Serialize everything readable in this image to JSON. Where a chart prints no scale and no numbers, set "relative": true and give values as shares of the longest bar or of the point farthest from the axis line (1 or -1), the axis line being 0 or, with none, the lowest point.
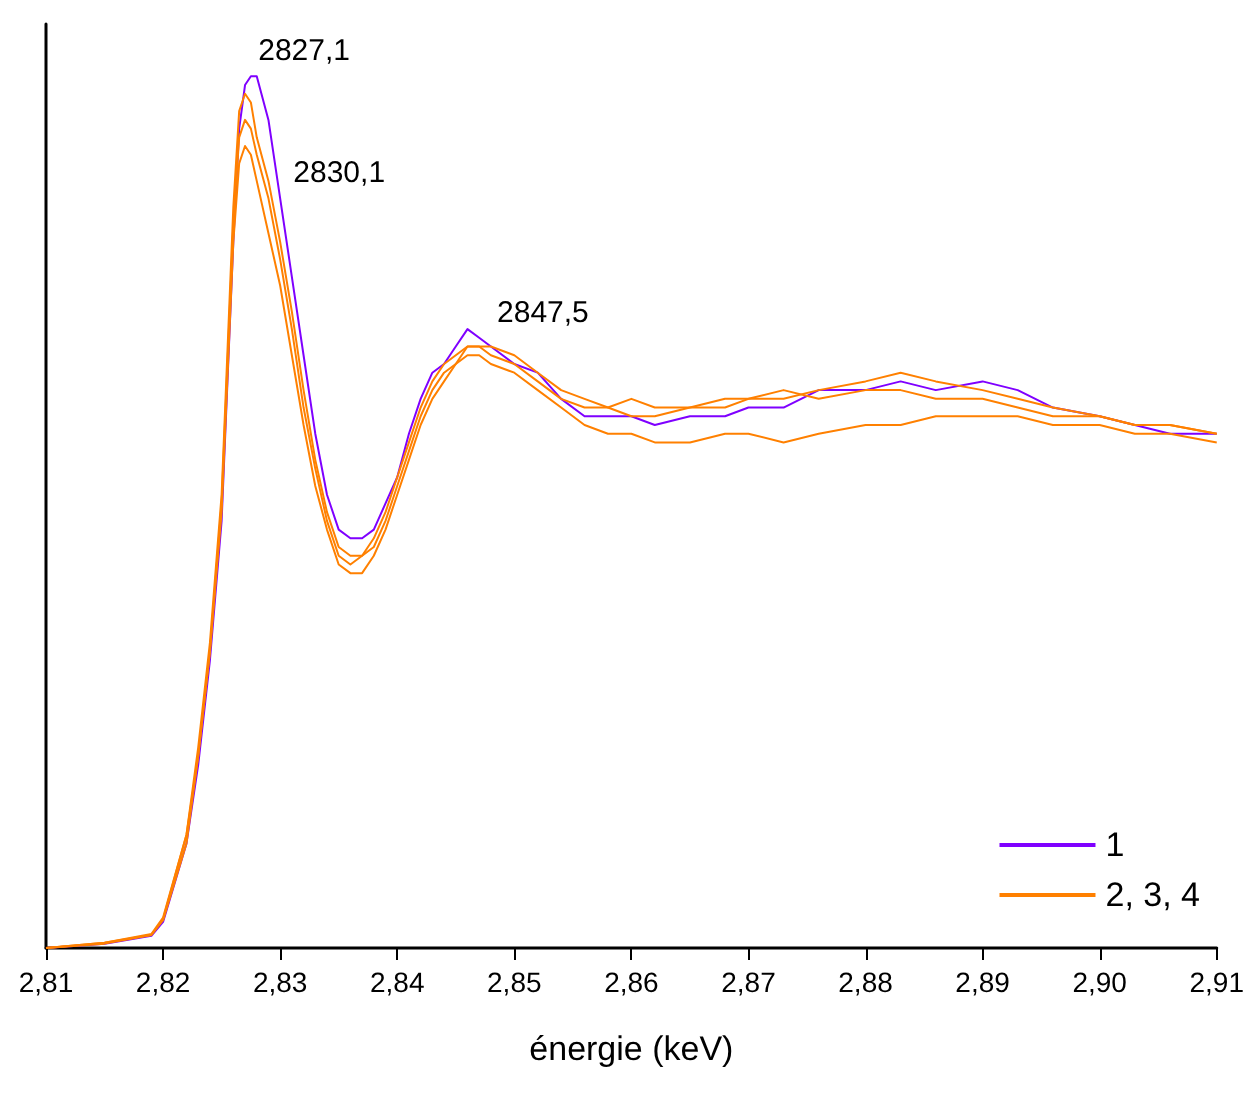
{
  "chart_data": {
    "type": "line",
    "xlabel": "énergie (keV)",
    "relative": true,
    "legend": "bottom right",
    "grid": false,
    "marker": "none",
    "line_style": "solid",
    "xlim": [
      2.81,
      2.91
    ],
    "xticks": [
      {
        "value": 2.81,
        "label": "2,81"
      },
      {
        "value": 2.82,
        "label": "2,82"
      },
      {
        "value": 2.83,
        "label": "2,83"
      },
      {
        "value": 2.84,
        "label": "2,84"
      },
      {
        "value": 2.85,
        "label": "2,85"
      },
      {
        "value": 2.86,
        "label": "2,86"
      },
      {
        "value": 2.87,
        "label": "2,87"
      },
      {
        "value": 2.88,
        "label": "2,88"
      },
      {
        "value": 2.89,
        "label": "2,89"
      },
      {
        "value": 2.9,
        "label": "2,90"
      },
      {
        "value": 2.91,
        "label": "2,91"
      }
    ],
    "x": [
      2.81,
      2.815,
      2.819,
      2.82,
      2.822,
      2.823,
      2.824,
      2.825,
      2.826,
      2.8265,
      2.827,
      2.8275,
      2.828,
      2.829,
      2.83,
      2.831,
      2.832,
      2.833,
      2.834,
      2.835,
      2.836,
      2.837,
      2.838,
      2.839,
      2.84,
      2.841,
      2.842,
      2.843,
      2.844,
      2.845,
      2.846,
      2.847,
      2.848,
      2.85,
      2.852,
      2.854,
      2.856,
      2.858,
      2.86,
      2.862,
      2.865,
      2.868,
      2.87,
      2.873,
      2.876,
      2.88,
      2.883,
      2.886,
      2.89,
      2.893,
      2.896,
      2.9,
      2.903,
      2.906,
      2.91
    ],
    "series": [
      {
        "name": "1",
        "color": "#7f00ff",
        "values": [
          0,
          0.005,
          0.014,
          0.03,
          0.12,
          0.21,
          0.33,
          0.49,
          0.81,
          0.94,
          0.99,
          1.0,
          1.0,
          0.95,
          0.86,
          0.77,
          0.68,
          0.59,
          0.52,
          0.48,
          0.47,
          0.47,
          0.48,
          0.51,
          0.54,
          0.59,
          0.63,
          0.66,
          0.67,
          0.69,
          0.71,
          0.7,
          0.69,
          0.67,
          0.66,
          0.63,
          0.61,
          0.61,
          0.61,
          0.6,
          0.61,
          0.61,
          0.62,
          0.62,
          0.64,
          0.64,
          0.65,
          0.64,
          0.65,
          0.64,
          0.62,
          0.61,
          0.6,
          0.59,
          0.59
        ]
      },
      {
        "name": "2, 3, 4",
        "color": "#ff8000",
        "values": [
          0,
          0.006,
          0.016,
          0.035,
          0.13,
          0.23,
          0.35,
          0.52,
          0.85,
          0.96,
          0.98,
          0.97,
          0.93,
          0.88,
          0.81,
          0.73,
          0.64,
          0.56,
          0.5,
          0.46,
          0.45,
          0.45,
          0.47,
          0.5,
          0.54,
          0.58,
          0.62,
          0.65,
          0.67,
          0.68,
          0.69,
          0.69,
          0.69,
          0.68,
          0.66,
          0.64,
          0.63,
          0.62,
          0.63,
          0.62,
          0.62,
          0.62,
          0.63,
          0.63,
          0.64,
          0.65,
          0.66,
          0.65,
          0.64,
          0.63,
          0.62,
          0.61,
          0.6,
          0.6,
          0.59
        ]
      },
      {
        "color": "#ff8000",
        "values": [
          0,
          0.006,
          0.015,
          0.033,
          0.13,
          0.22,
          0.34,
          0.51,
          0.83,
          0.93,
          0.95,
          0.94,
          0.91,
          0.86,
          0.79,
          0.71,
          0.62,
          0.55,
          0.49,
          0.45,
          0.44,
          0.45,
          0.46,
          0.49,
          0.53,
          0.57,
          0.61,
          0.64,
          0.66,
          0.67,
          0.69,
          0.69,
          0.68,
          0.67,
          0.65,
          0.63,
          0.62,
          0.62,
          0.61,
          0.61,
          0.62,
          0.63,
          0.63,
          0.64,
          0.63,
          0.64,
          0.64,
          0.63,
          0.63,
          0.62,
          0.61,
          0.61,
          0.6,
          0.6,
          0.59
        ]
      },
      {
        "color": "#ff8000",
        "values": [
          0,
          0.005,
          0.015,
          0.032,
          0.12,
          0.22,
          0.34,
          0.5,
          0.81,
          0.9,
          0.92,
          0.91,
          0.88,
          0.82,
          0.76,
          0.68,
          0.6,
          0.53,
          0.48,
          0.44,
          0.43,
          0.43,
          0.45,
          0.48,
          0.52,
          0.56,
          0.6,
          0.63,
          0.65,
          0.67,
          0.68,
          0.68,
          0.67,
          0.66,
          0.64,
          0.62,
          0.6,
          0.59,
          0.59,
          0.58,
          0.58,
          0.59,
          0.59,
          0.58,
          0.59,
          0.6,
          0.6,
          0.61,
          0.61,
          0.61,
          0.6,
          0.6,
          0.59,
          0.59,
          0.58
        ]
      }
    ],
    "annotations": [
      {
        "text": "2827,1",
        "x": 2.8271,
        "y": 1.0
      },
      {
        "text": "2830,1",
        "x": 2.8301,
        "y": 0.86
      },
      {
        "text": "2847,5",
        "x": 2.8475,
        "y": 0.7
      }
    ]
  }
}
